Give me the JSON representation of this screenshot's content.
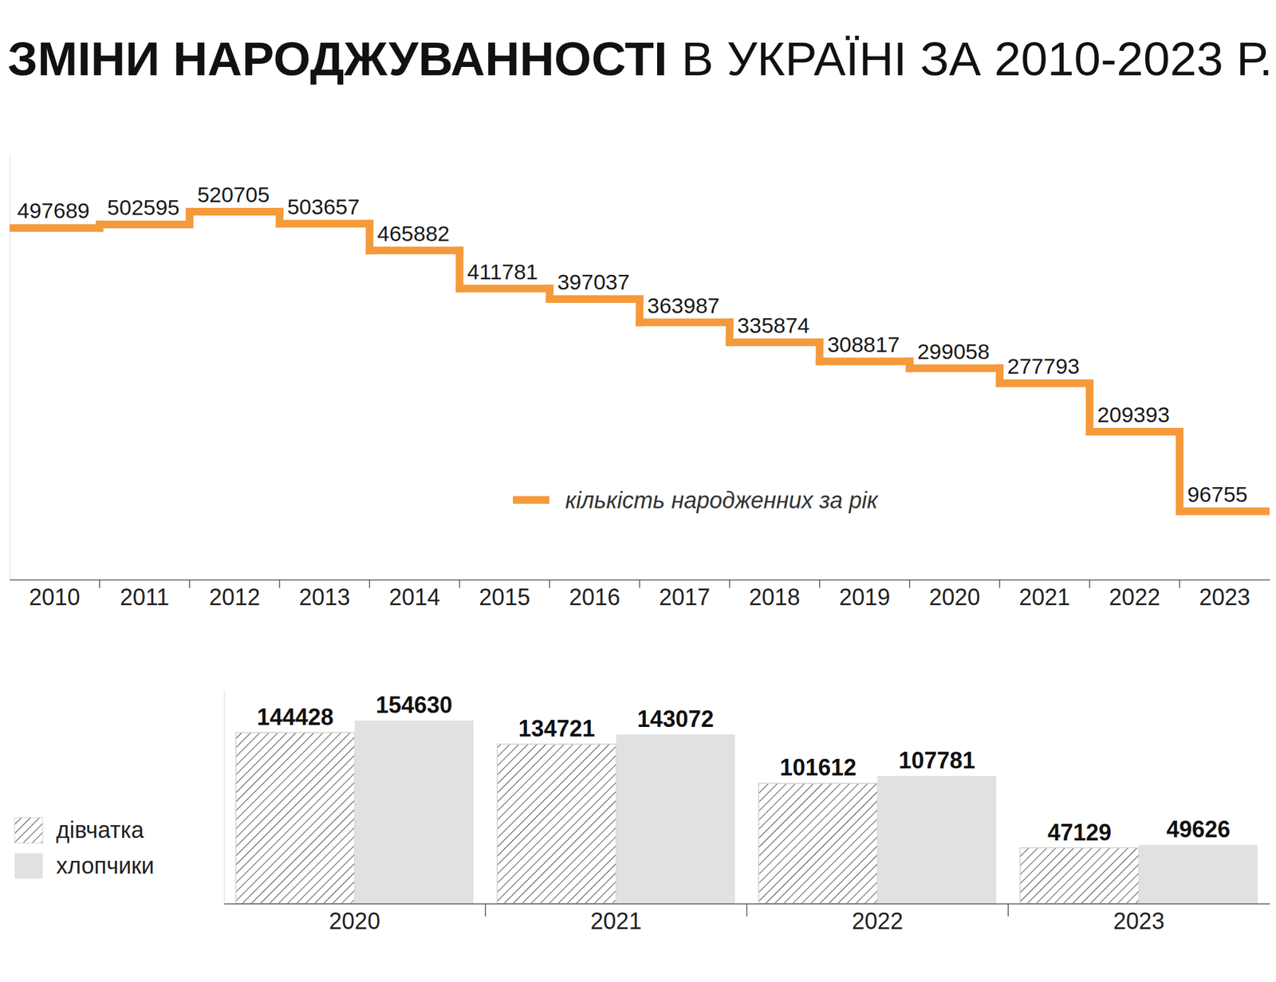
{
  "chart_data": [
    {
      "type": "line",
      "title": "ЗМІНИ НАРОДЖУВАННОСТІ В УКРАЇНІ ЗА 2010-2023 Р.",
      "categories": [
        "2010",
        "2011",
        "2012",
        "2013",
        "2014",
        "2015",
        "2016",
        "2017",
        "2018",
        "2019",
        "2020",
        "2021",
        "2022",
        "2023"
      ],
      "series": [
        {
          "name": "кількість народженних за рік",
          "color": "#f59a3b",
          "line_style": "step",
          "values": [
            497689,
            502595,
            520705,
            503657,
            465882,
            411781,
            397037,
            363987,
            335874,
            308817,
            299058,
            277793,
            209393,
            96755
          ]
        }
      ],
      "ylim": [
        0,
        600000
      ],
      "tick_labels": "x",
      "data_labels": true,
      "legend": "lower right"
    },
    {
      "type": "bar",
      "categories": [
        "2020",
        "2021",
        "2022",
        "2023"
      ],
      "series": [
        {
          "name": "дівчатка",
          "color": "#4a4a4a",
          "values": [
            144428,
            134721,
            101612,
            47129
          ]
        },
        {
          "name": "хлопчики",
          "color": "#e1e1e3",
          "values": [
            154630,
            143072,
            107781,
            49626
          ]
        }
      ],
      "ylim": [
        0,
        180000
      ],
      "tick_labels": "x",
      "data_labels": true,
      "legend": "left"
    }
  ]
}
